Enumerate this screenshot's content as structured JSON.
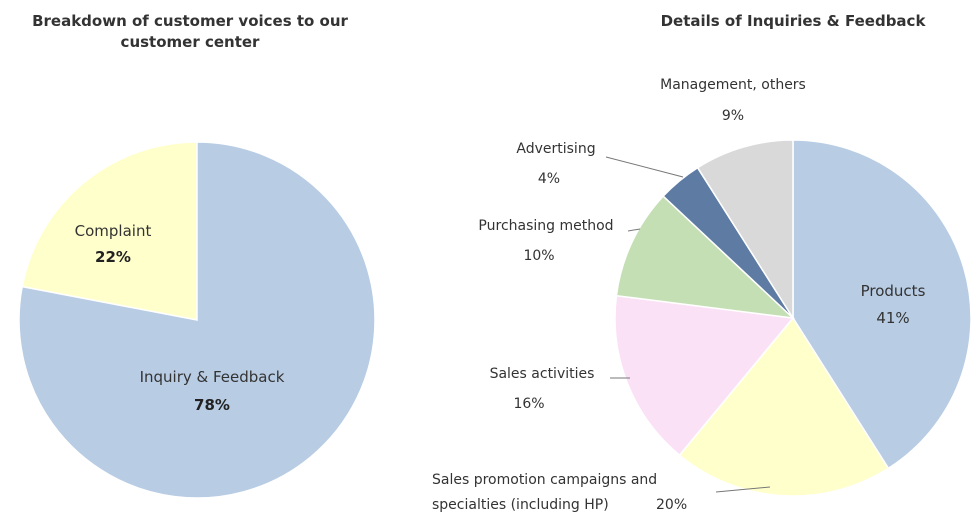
{
  "chart_data": [
    {
      "type": "pie",
      "title": "Breakdown of customer voices to our customer center",
      "title_lines": [
        "Breakdown of customer voices to our",
        "customer center"
      ],
      "slices": [
        {
          "label": "Complaint",
          "value": 22,
          "value_label": "22%",
          "color": "#FFFFCC"
        },
        {
          "label": "Inquiry & Feedback",
          "value": 78,
          "value_label": "78%",
          "color": "#B8CCE4"
        }
      ]
    },
    {
      "type": "pie",
      "title": "Details of Inquiries & Feedback",
      "slices": [
        {
          "label": "Products",
          "value": 41,
          "value_label": "41%",
          "color": "#B8CCE4"
        },
        {
          "label": "Sales promotion campaigns and specialties (including HP)",
          "label_lines": [
            "Sales promotion campaigns and",
            "specialties (including HP)"
          ],
          "value": 20,
          "value_label": "20%",
          "color": "#FFFFCC"
        },
        {
          "label": "Sales activities",
          "value": 16,
          "value_label": "16%",
          "color": "#FBE1F5"
        },
        {
          "label": "Purchasing method",
          "value": 10,
          "value_label": "10%",
          "color": "#C5DFB4"
        },
        {
          "label": "Advertising",
          "value": 4,
          "value_label": "4%",
          "color": "#5E7BA3"
        },
        {
          "label": "Management, others",
          "value": 9,
          "value_label": "9%",
          "color": "#D9D9D9"
        }
      ]
    }
  ]
}
